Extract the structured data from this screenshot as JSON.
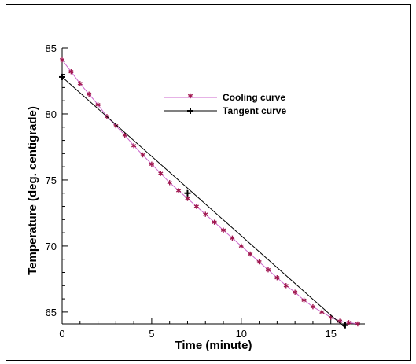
{
  "chart_data": {
    "type": "line",
    "title": "",
    "xlabel": "Time (minute)",
    "ylabel": "Temperature (deg. centigrade)",
    "xlim": [
      0,
      16.9
    ],
    "ylim": [
      64.1,
      85
    ],
    "xticks": [
      0,
      5,
      10,
      15
    ],
    "yticks": [
      65,
      70,
      75,
      80,
      85
    ],
    "grid": false,
    "legend": "top-center",
    "series": [
      {
        "name": "Cooling curve",
        "color": "#cc66cc",
        "marker_color": "#a01850",
        "marker": "star",
        "x": [
          0.0,
          0.5,
          1.0,
          1.5,
          2.0,
          2.5,
          3.0,
          3.5,
          4.0,
          4.5,
          5.0,
          5.5,
          6.0,
          6.5,
          7.0,
          7.5,
          8.0,
          8.5,
          9.0,
          9.5,
          10.0,
          10.5,
          11.0,
          11.5,
          12.0,
          12.5,
          13.0,
          13.5,
          14.0,
          14.5,
          15.0,
          15.5,
          16.0,
          16.5
        ],
        "y": [
          84.1,
          83.2,
          82.3,
          81.5,
          80.7,
          79.8,
          79.1,
          78.4,
          77.6,
          76.9,
          76.2,
          75.5,
          74.8,
          74.2,
          73.6,
          73.0,
          72.4,
          71.8,
          71.2,
          70.6,
          70.0,
          69.4,
          68.8,
          68.2,
          67.6,
          67.0,
          66.5,
          65.9,
          65.4,
          65.0,
          64.6,
          64.3,
          64.2,
          64.1
        ]
      },
      {
        "name": "Tangent curve",
        "color": "#000000",
        "marker": "plus",
        "x": [
          0.0,
          7.0,
          15.8
        ],
        "y": [
          82.8,
          74.0,
          64.0
        ],
        "line_y_end": 63.8
      }
    ]
  }
}
